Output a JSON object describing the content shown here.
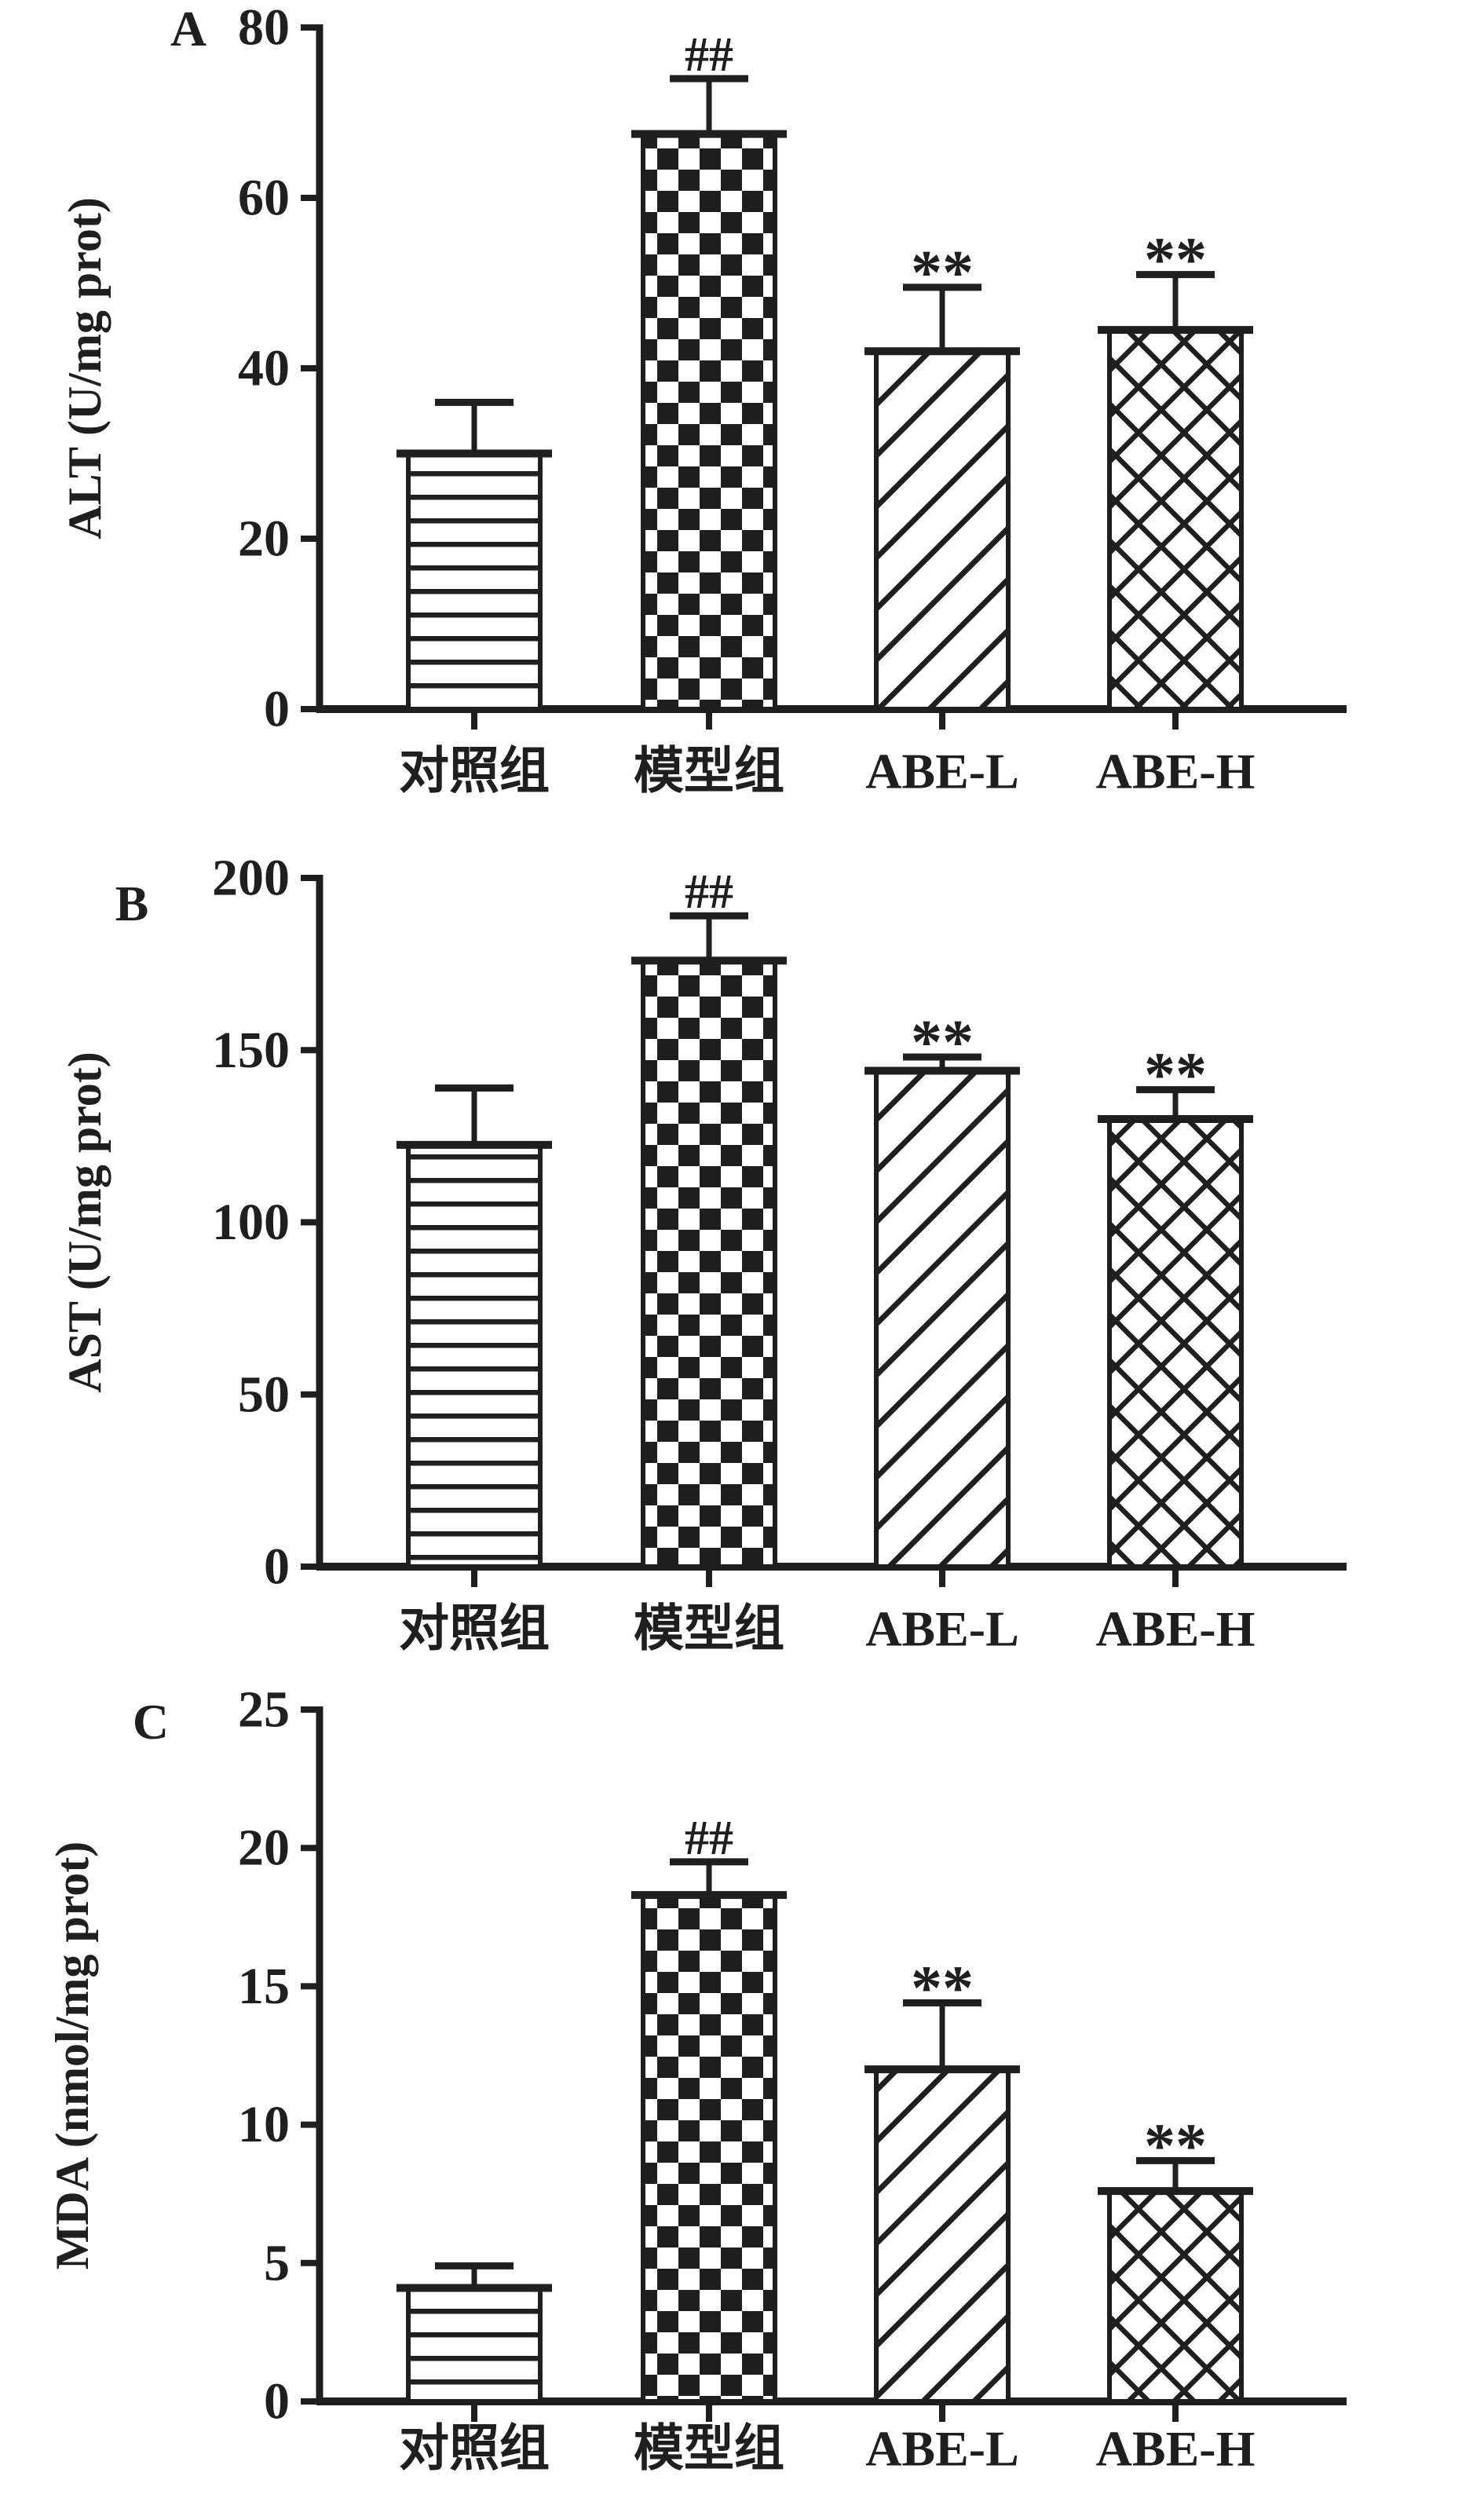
{
  "figure": {
    "background": "#ffffff",
    "ink": "#1f1f1f",
    "panel_labels": [
      "A",
      "B",
      "C"
    ]
  },
  "chart_data": [
    {
      "type": "bar",
      "panel_label": "A",
      "title": "",
      "xlabel": "",
      "ylabel": "ALT (U/mg prot)",
      "categories": [
        "对照组",
        "模型组",
        "ABE-L",
        "ABE-H"
      ],
      "values": [
        30,
        67.5,
        42,
        44.5
      ],
      "error_top": [
        36,
        74,
        49.5,
        51
      ],
      "significance": [
        "",
        "##",
        "**",
        "**"
      ],
      "bar_patterns": [
        "horizontal-lines",
        "checkerboard",
        "diagonal-lines",
        "diagonal-basket"
      ],
      "ylim": [
        0,
        80
      ],
      "yticks": [
        0,
        20,
        40,
        60,
        80
      ],
      "grid": false,
      "legend": "none"
    },
    {
      "type": "bar",
      "panel_label": "B",
      "title": "",
      "xlabel": "",
      "ylabel": "AST (U/mg prot)",
      "categories": [
        "对照组",
        "模型组",
        "ABE-L",
        "ABE-H"
      ],
      "values": [
        122.5,
        176,
        144,
        130
      ],
      "error_top": [
        139,
        189,
        148,
        138.5
      ],
      "significance": [
        "",
        "##",
        "**",
        "**"
      ],
      "bar_patterns": [
        "horizontal-lines",
        "checkerboard",
        "diagonal-lines",
        "diagonal-basket"
      ],
      "ylim": [
        0,
        200
      ],
      "yticks": [
        0,
        50,
        100,
        150,
        200
      ],
      "grid": false,
      "legend": "none"
    },
    {
      "type": "bar",
      "panel_label": "C",
      "title": "",
      "xlabel": "",
      "ylabel": "MDA (nmol/mg prot)",
      "categories": [
        "对照组",
        "模型组",
        "ABE-L",
        "ABE-H"
      ],
      "values": [
        4.1,
        18.3,
        12,
        7.6
      ],
      "error_top": [
        4.9,
        19.5,
        14.4,
        8.7
      ],
      "significance": [
        "",
        "##",
        "**",
        "**"
      ],
      "bar_patterns": [
        "horizontal-lines",
        "checkerboard",
        "diagonal-lines",
        "diagonal-basket"
      ],
      "ylim": [
        0,
        25
      ],
      "yticks": [
        0,
        5,
        10,
        15,
        20,
        25
      ],
      "grid": false,
      "legend": "none"
    }
  ]
}
